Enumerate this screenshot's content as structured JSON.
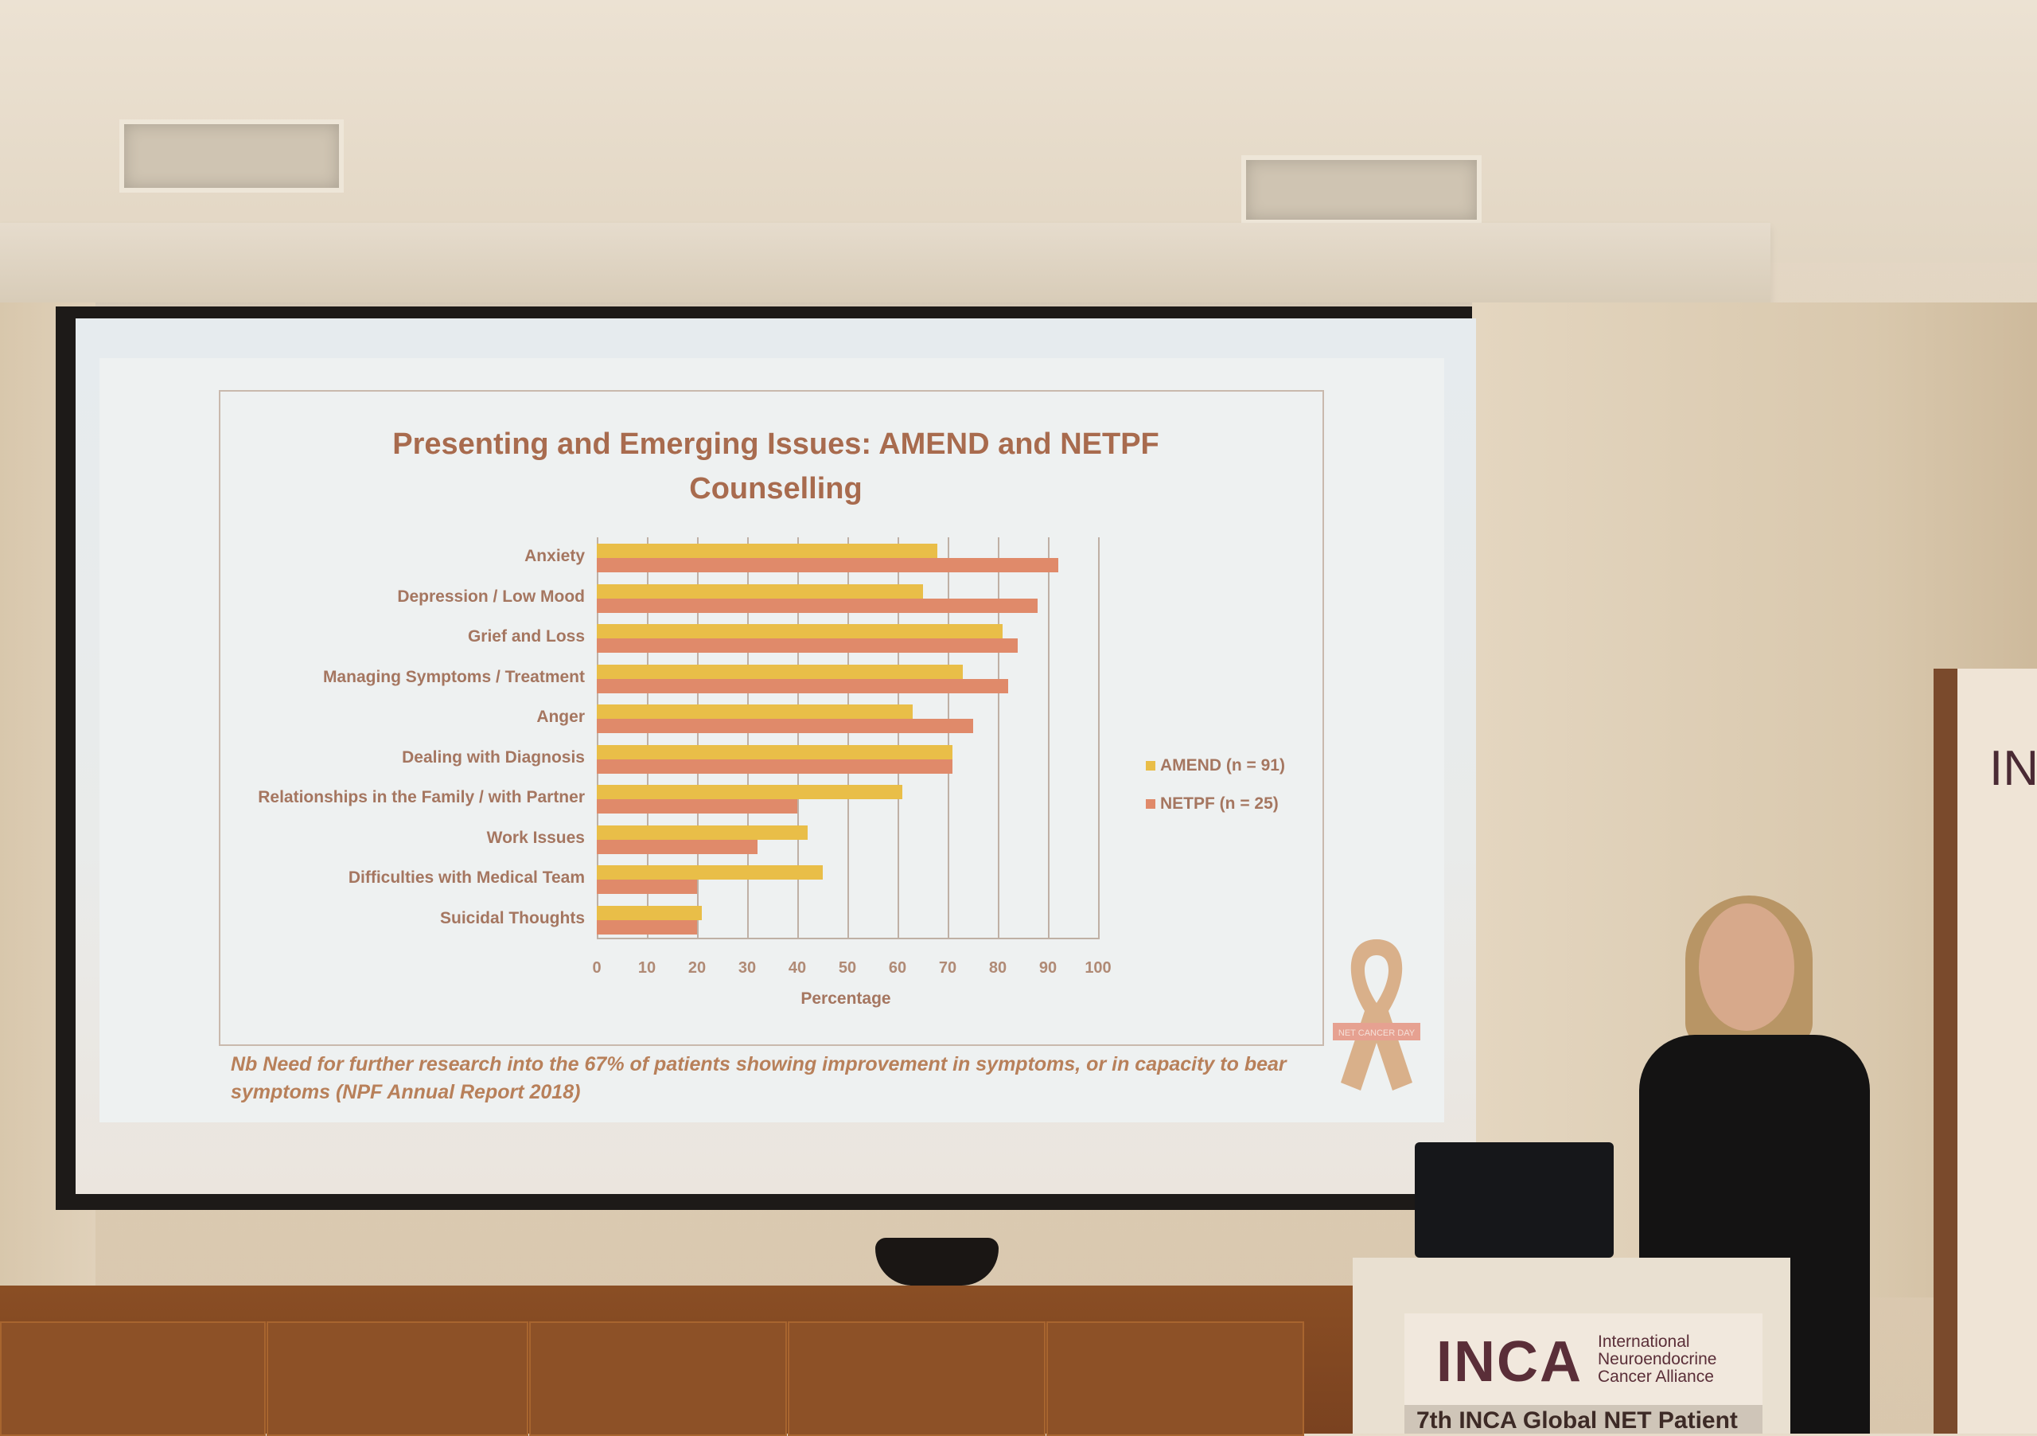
{
  "slide": {
    "title": "Presenting and Emerging Issues: AMEND and NETPF Counselling",
    "note": "Nb Need for further research into the 67% of patients showing improvement in symptoms, or in capacity to bear symptoms (NPF Annual Report 2018)",
    "ribbon_text": "NET CANCER DAY"
  },
  "chart_data": {
    "type": "bar",
    "orientation": "horizontal",
    "title": "Presenting and Emerging Issues: AMEND and NETPF Counselling",
    "xlabel": "Percentage",
    "ylabel": "",
    "xlim": [
      0,
      100
    ],
    "xticks": [
      "0",
      "10",
      "20",
      "30",
      "40",
      "50",
      "60",
      "70",
      "80",
      "90",
      "100"
    ],
    "grid": true,
    "legend_position": "right",
    "categories": [
      "Anxiety",
      "Depression / Low Mood",
      "Grief and Loss",
      "Managing Symptoms / Treatment",
      "Anger",
      "Dealing with Diagnosis",
      "Relationships in the Family / with Partner",
      "Work Issues",
      "Difficulties with Medical Team",
      "Suicidal Thoughts"
    ],
    "series": [
      {
        "name": "AMEND (n = 91)",
        "color": "#e9be48",
        "values": [
          68,
          65,
          81,
          73,
          63,
          71,
          61,
          42,
          45,
          21
        ]
      },
      {
        "name": "NETPF (n = 25)",
        "color": "#e08a6a",
        "values": [
          92,
          88,
          84,
          82,
          75,
          71,
          40,
          32,
          20,
          20
        ]
      }
    ]
  },
  "podium": {
    "logo": "INCA",
    "org_line1": "International",
    "org_line2": "Neuroendocrine",
    "org_line3": "Cancer Alliance",
    "event": "7th INCA Global NET Patient"
  },
  "banner": {
    "text": "IN"
  }
}
